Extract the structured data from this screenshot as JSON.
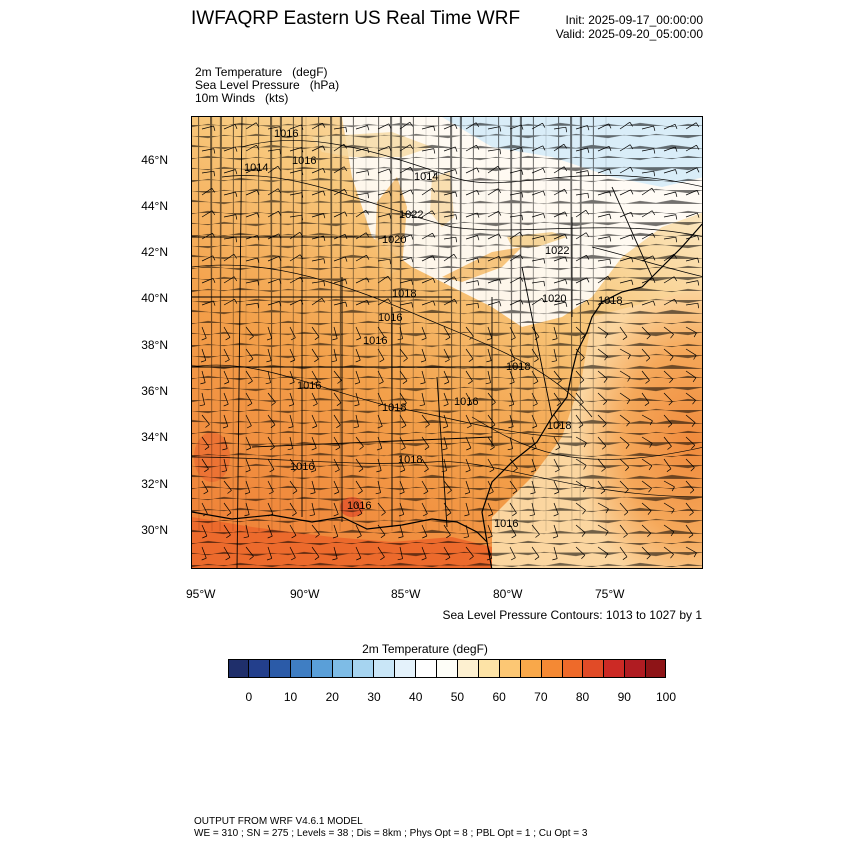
{
  "header": {
    "title": "IWFAQRP Eastern US Real Time WRF",
    "init": "Init: 2025-09-17_00:00:00",
    "valid": "Valid: 2025-09-20_05:00:00"
  },
  "fields": [
    {
      "name": "2m Temperature",
      "unit": "(degF)"
    },
    {
      "name": "Sea Level Pressure",
      "unit": "(hPa)"
    },
    {
      "name": "10m Winds",
      "unit": "(kts)"
    }
  ],
  "map": {
    "lat_labels": [
      "46°N",
      "44°N",
      "42°N",
      "40°N",
      "38°N",
      "36°N",
      "34°N",
      "32°N",
      "30°N"
    ],
    "lon_labels": [
      "95°W",
      "90°W",
      "85°W",
      "80°W",
      "75°W"
    ],
    "contour_labels": [
      "1016",
      "1014",
      "1016",
      "1014",
      "1022",
      "1020",
      "1022",
      "1018",
      "1020",
      "1018",
      "1016",
      "1016",
      "1016",
      "1018",
      "1018",
      "1016",
      "1018",
      "1018",
      "1016",
      "1016",
      "1016"
    ],
    "colors": {
      "warm_deep": "#e8642a",
      "warm": "#f19a3e",
      "mild": "#f7c777",
      "cool": "#fbe7bd",
      "neutral": "#ffffff",
      "cold": "#d3eaf8"
    }
  },
  "contour_note": "Sea Level Pressure Contours: 1013 to 1027 by 1",
  "colorbar": {
    "title": "2m Temperature   (degF)",
    "colors": [
      "#1f2f6b",
      "#233f8c",
      "#2b5ba8",
      "#3f7ec3",
      "#5a9fd8",
      "#7ebce6",
      "#a6d4f0",
      "#c9e6f7",
      "#e4f2fb",
      "#ffffff",
      "#fefef8",
      "#fdf0d0",
      "#fde3a6",
      "#fcc774",
      "#f9a84a",
      "#f48934",
      "#ee6a2a",
      "#e14b27",
      "#cc2a25",
      "#b01c22",
      "#8e1417"
    ],
    "labels": [
      "0",
      "10",
      "20",
      "30",
      "40",
      "50",
      "60",
      "70",
      "80",
      "90",
      "100"
    ]
  },
  "footer": {
    "line1": "OUTPUT FROM WRF V4.6.1 MODEL",
    "line2": "WE = 310 ; SN = 275 ; Levels = 38 ; Dis = 8km ; Phys Opt = 8 ; PBL Opt = 1 ; Cu Opt = 3"
  }
}
